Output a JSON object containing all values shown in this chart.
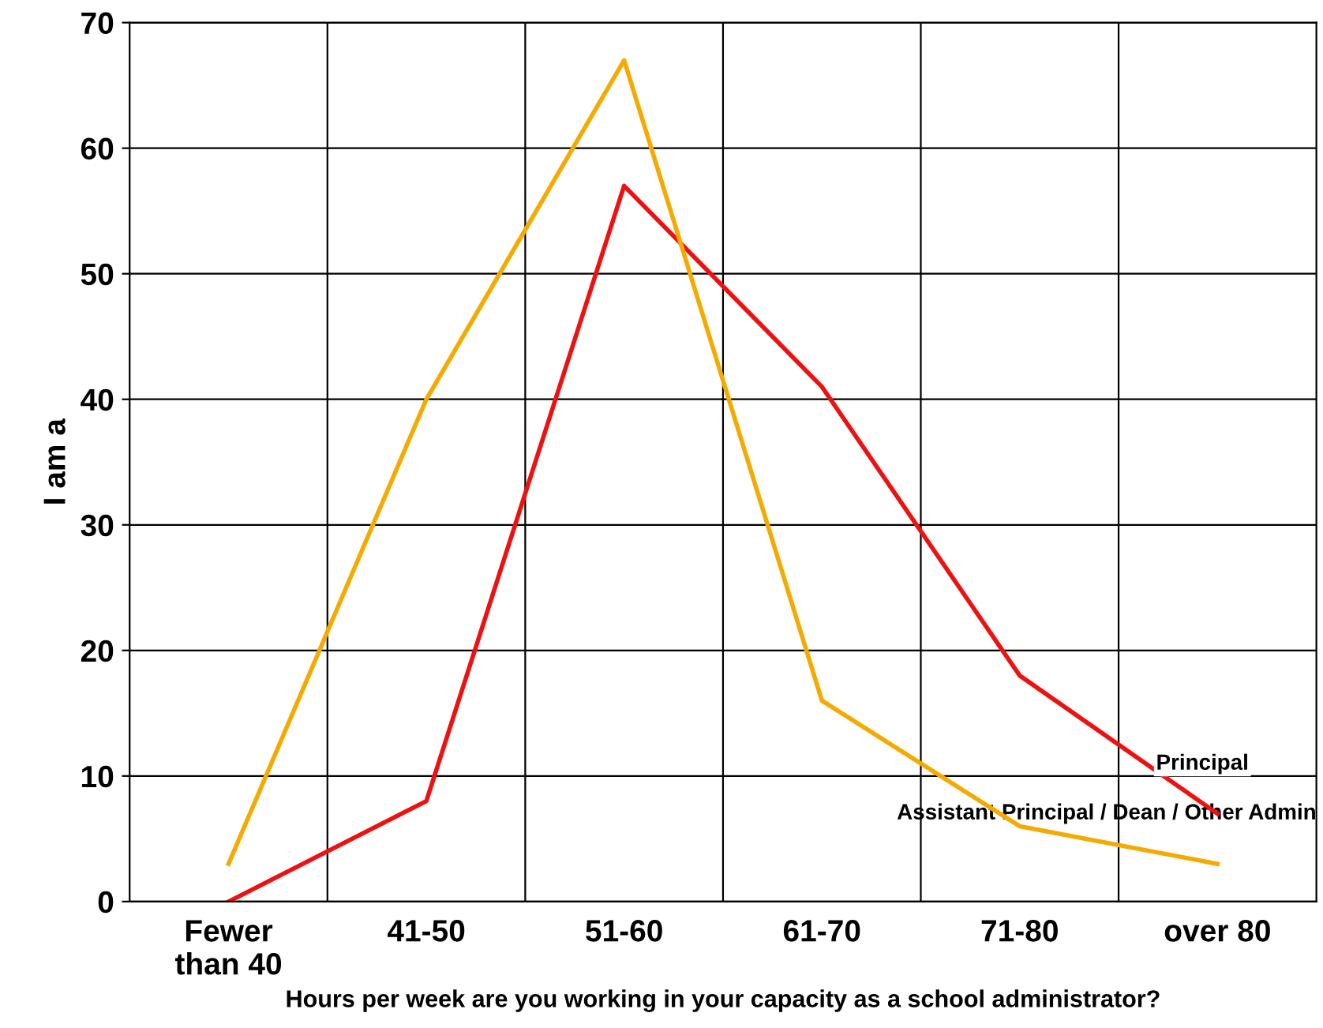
{
  "chart_data": {
    "type": "line",
    "xlabel": "Hours per week are you working in your capacity as a school administrator?",
    "ylabel": "I am a",
    "categories": [
      "Fewer\nthan 40",
      "41-50",
      "51-60",
      "61-70",
      "71-80",
      "over 80"
    ],
    "series": [
      {
        "name": "Principal",
        "color": "#ee1111",
        "values": [
          0,
          8,
          57,
          41,
          18,
          7
        ]
      },
      {
        "name": "Assistant Principal / Dean / Other Admin",
        "color": "#f5aa00",
        "values": [
          3,
          40,
          67,
          16,
          6,
          3
        ]
      }
    ],
    "ylim": [
      0,
      70
    ],
    "yticks": [
      0,
      10,
      20,
      30,
      40,
      50,
      60,
      70
    ],
    "grid": true,
    "marker": "none",
    "line_style": "solid"
  }
}
